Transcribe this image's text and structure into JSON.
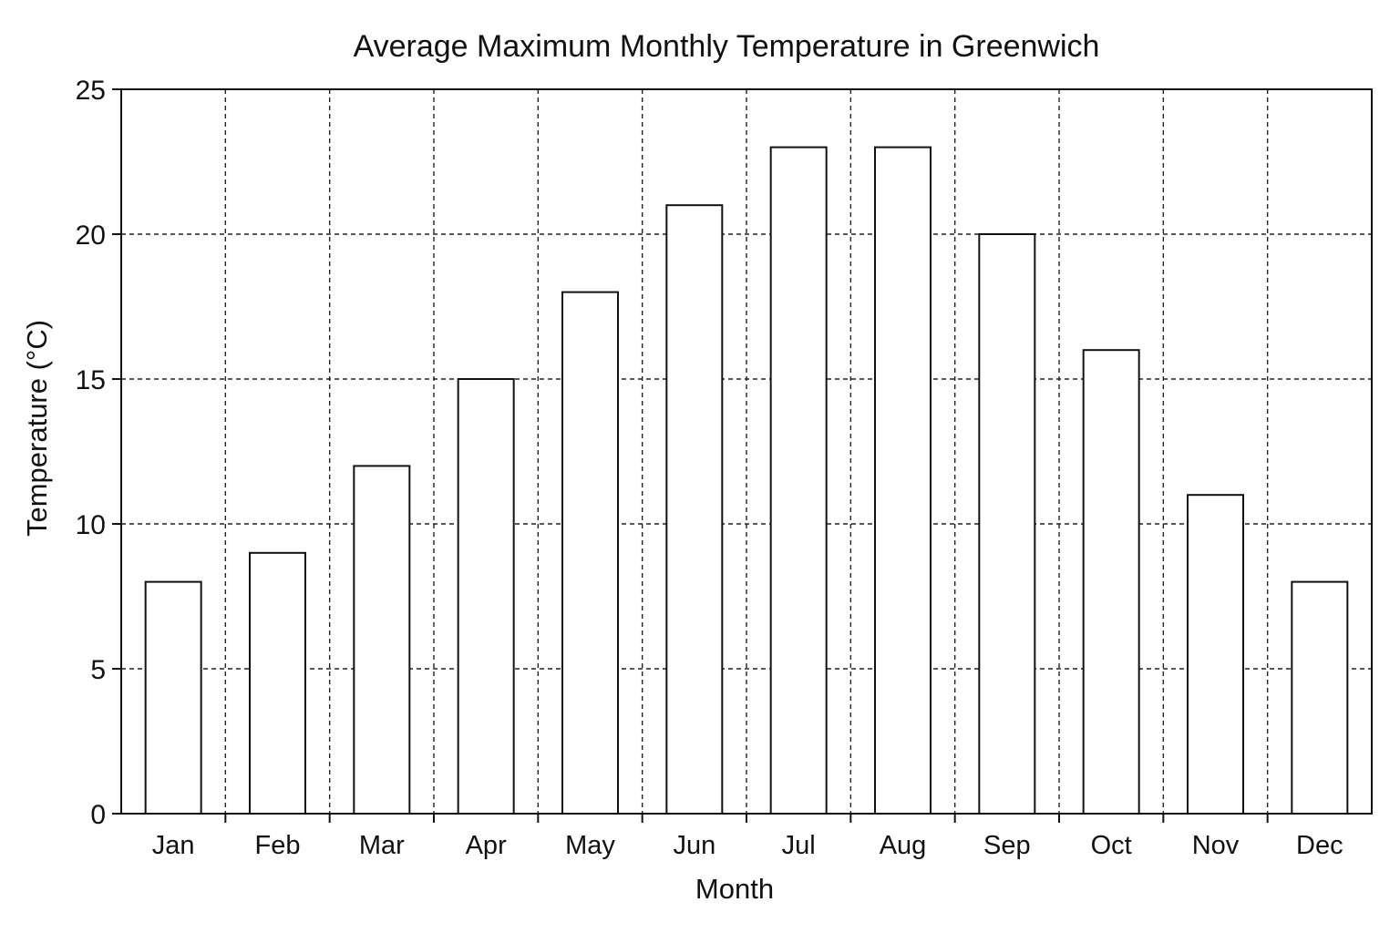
{
  "chart_data": {
    "type": "bar",
    "title": "Average Maximum Monthly Temperature in Greenwich",
    "xlabel": "Month",
    "ylabel": "Temperature (°C)",
    "categories": [
      "Jan",
      "Feb",
      "Mar",
      "Apr",
      "May",
      "Jun",
      "Jul",
      "Aug",
      "Sep",
      "Oct",
      "Nov",
      "Dec"
    ],
    "values": [
      8,
      9,
      12,
      15,
      18,
      21,
      23,
      23,
      20,
      16,
      11,
      8
    ],
    "ylim": [
      0,
      25
    ],
    "yticks": [
      0,
      5,
      10,
      15,
      20,
      25
    ],
    "grid": true,
    "colors": {
      "bar_fill": "#ffffff",
      "bar_stroke": "#111111",
      "grid": "#222222",
      "text": "#111111"
    }
  }
}
